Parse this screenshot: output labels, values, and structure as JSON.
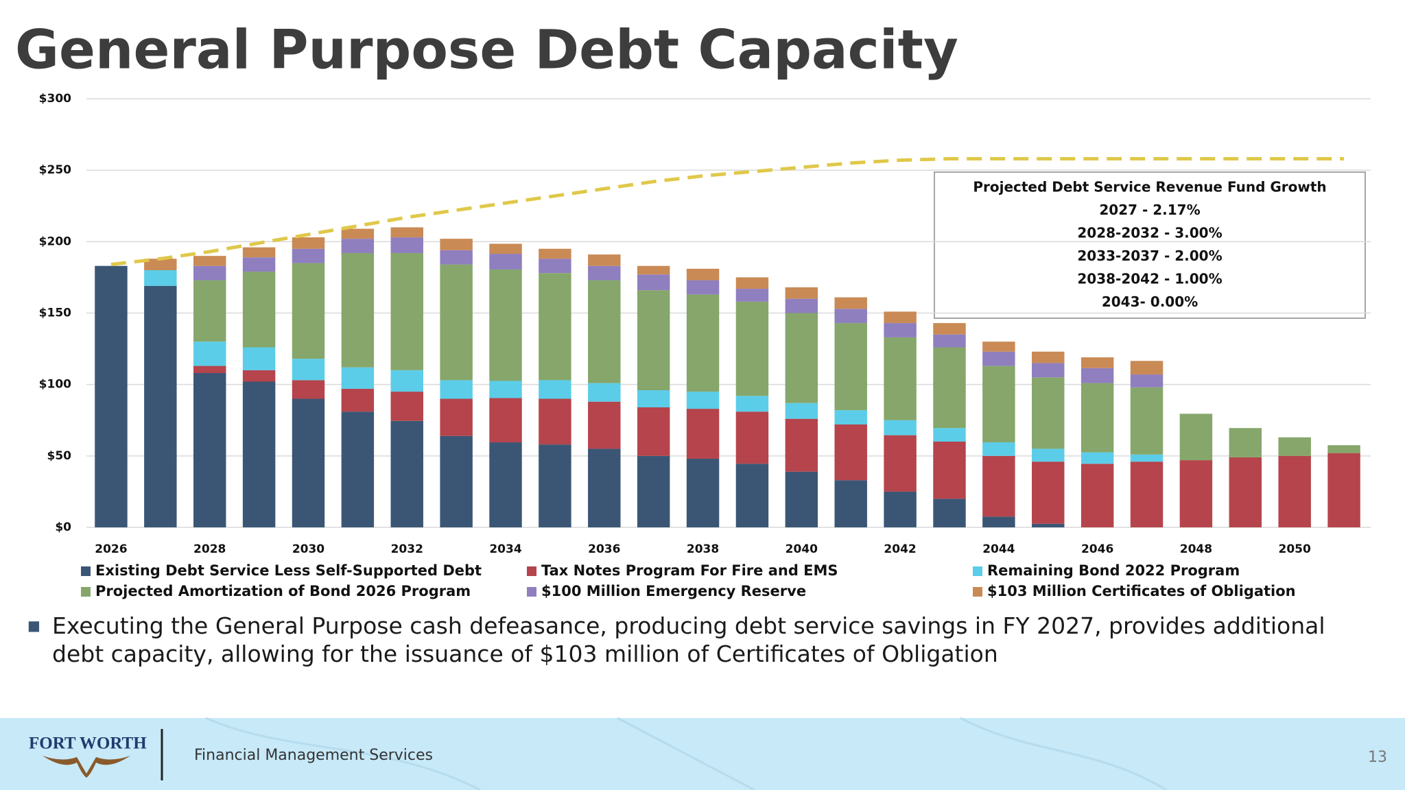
{
  "chart_data": {
    "type": "bar",
    "stacked": true,
    "title": "General Purpose Debt Capacity",
    "categories": [
      "2026",
      null,
      "2028",
      null,
      "2030",
      null,
      "2032",
      null,
      "2034",
      null,
      "2036",
      null,
      "2038",
      null,
      "2040",
      null,
      "2042",
      null,
      "2044",
      null,
      "2046",
      null,
      "2048",
      null,
      "2050",
      null
    ],
    "series": [
      {
        "name": "Existing Debt Service Less Self-Supported Debt",
        "color": "#3b5675",
        "values": [
          183,
          169,
          108,
          102,
          90,
          81,
          74.5,
          64,
          59.5,
          58,
          55,
          50,
          48,
          44.5,
          39,
          33,
          25,
          20,
          7.5,
          2.5,
          0,
          0,
          0,
          0,
          0,
          0
        ]
      },
      {
        "name": "Tax Notes Program For Fire and EMS",
        "color": "#b5444c",
        "values": [
          0,
          0,
          5,
          8,
          13,
          16,
          20.5,
          26,
          31,
          32,
          33,
          34,
          35,
          36.5,
          37,
          39,
          39.5,
          40,
          42.5,
          43.5,
          44.5,
          46,
          47,
          49,
          50,
          52
        ]
      },
      {
        "name": "Remaining Bond 2022 Program",
        "color": "#5bcde8",
        "values": [
          0,
          11,
          17,
          16,
          15,
          15,
          15,
          13,
          12,
          13,
          13,
          12,
          12,
          11,
          11,
          10,
          10.5,
          9.5,
          9.5,
          9,
          8,
          5,
          0,
          0,
          0,
          0
        ]
      },
      {
        "name": "Projected Amortization of Bond 2026 Program",
        "color": "#86a66b",
        "values": [
          0,
          0,
          43,
          53,
          67,
          80,
          82,
          81,
          78,
          75,
          72,
          70,
          68,
          66,
          63,
          61,
          58,
          56.5,
          53.5,
          50,
          48.5,
          47,
          32.5,
          20.5,
          13,
          5.5
        ]
      },
      {
        "name": "$100 Million Emergency Reserve",
        "color": "#8f7fbf",
        "values": [
          0,
          0,
          10,
          10,
          10,
          10,
          11,
          10,
          11,
          10,
          10,
          11,
          10,
          9,
          10,
          10,
          10,
          9,
          10,
          10,
          10.5,
          9,
          0,
          0,
          0,
          0
        ]
      },
      {
        "name": "$103 Million Certificates of Obligation",
        "color": "#c98a55",
        "values": [
          0,
          8,
          7,
          7,
          8,
          7,
          7,
          8,
          7,
          7,
          8,
          6,
          8,
          8,
          8,
          8,
          8,
          8,
          7,
          8,
          7.5,
          9.5,
          0,
          0,
          0,
          0
        ]
      }
    ],
    "line": {
      "color": "#e0c84a",
      "style": "dashed",
      "values": [
        184,
        188,
        193,
        199,
        205,
        211,
        217,
        222,
        227,
        232,
        237,
        242,
        246,
        249,
        252,
        255,
        257,
        258,
        258,
        258,
        258,
        258,
        258,
        258,
        258,
        258
      ]
    },
    "ylim": [
      0,
      300
    ],
    "yticks": [
      {
        "value": 0,
        "label": "$0"
      },
      {
        "value": 50,
        "label": "$50"
      },
      {
        "value": 100,
        "label": "$100"
      },
      {
        "value": 150,
        "label": "$150"
      },
      {
        "value": 200,
        "label": "$200"
      },
      {
        "value": 250,
        "label": "$250"
      },
      {
        "value": 300,
        "label": "$300"
      }
    ],
    "grid": true,
    "annotation": [
      "Projected Debt Service Revenue Fund Growth",
      "2027 - 2.17%",
      "2028-2032 - 3.00%",
      "2033-2037 - 2.00%",
      "2038-2042 - 1.00%",
      "2043- 0.00%"
    ]
  },
  "bullet": "Executing the General Purpose cash defeasance, producing debt service savings in FY 2027, provides additional debt capacity, allowing for the issuance of $103 million of Certificates of Obligation",
  "footer": {
    "logo": "FORT WORTH",
    "department": "Financial Management Services",
    "page": "13"
  }
}
